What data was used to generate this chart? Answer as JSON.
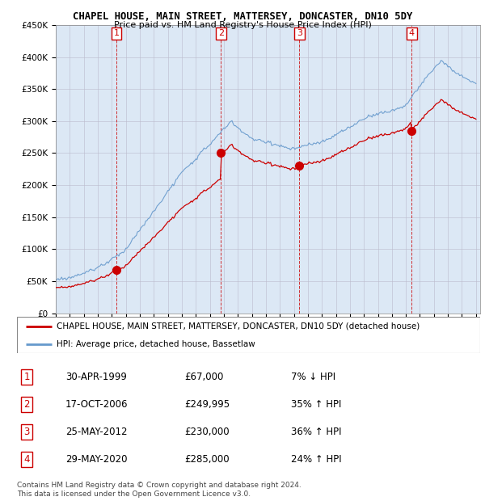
{
  "title": "CHAPEL HOUSE, MAIN STREET, MATTERSEY, DONCASTER, DN10 5DY",
  "subtitle": "Price paid vs. HM Land Registry's House Price Index (HPI)",
  "ylim": [
    0,
    450000
  ],
  "yticks": [
    0,
    50000,
    100000,
    150000,
    200000,
    250000,
    300000,
    350000,
    400000,
    450000
  ],
  "ytick_labels": [
    "£0",
    "£50K",
    "£100K",
    "£150K",
    "£200K",
    "£250K",
    "£300K",
    "£350K",
    "£400K",
    "£450K"
  ],
  "xlim_start": 1995.0,
  "xlim_end": 2025.3,
  "sale_dates": [
    1999.33,
    2006.8,
    2012.4,
    2020.42
  ],
  "sale_prices": [
    67000,
    249995,
    230000,
    285000
  ],
  "sale_labels": [
    "1",
    "2",
    "3",
    "4"
  ],
  "sale_color": "#cc0000",
  "hpi_color": "#6699cc",
  "chart_bg": "#dce8f5",
  "legend_line1": "CHAPEL HOUSE, MAIN STREET, MATTERSEY, DONCASTER, DN10 5DY (detached house)",
  "legend_line2": "HPI: Average price, detached house, Bassetlaw",
  "table_rows": [
    [
      "1",
      "30-APR-1999",
      "£67,000",
      "7% ↓ HPI"
    ],
    [
      "2",
      "17-OCT-2006",
      "£249,995",
      "35% ↑ HPI"
    ],
    [
      "3",
      "25-MAY-2012",
      "£230,000",
      "36% ↑ HPI"
    ],
    [
      "4",
      "29-MAY-2020",
      "£285,000",
      "24% ↑ HPI"
    ]
  ],
  "footer": "Contains HM Land Registry data © Crown copyright and database right 2024.\nThis data is licensed under the Open Government Licence v3.0.",
  "background_color": "#ffffff",
  "grid_color": "#aaaacc",
  "vline_color": "#cc0000"
}
